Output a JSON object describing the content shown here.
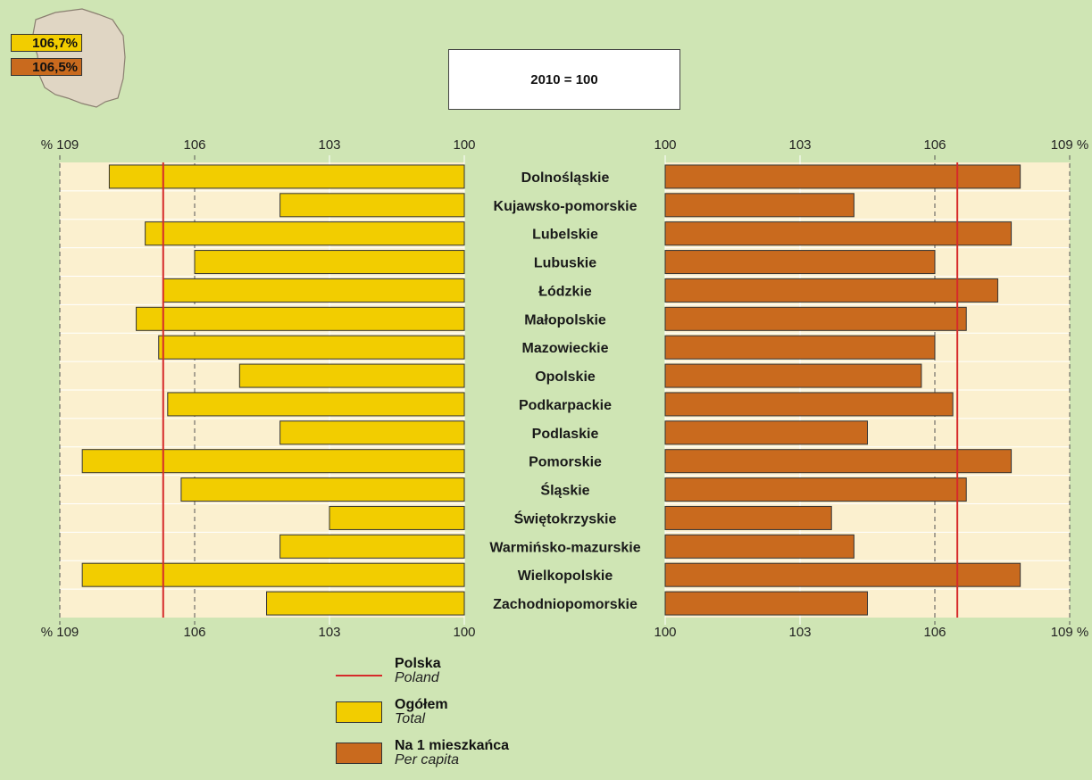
{
  "map_badges": {
    "total": "106,7%",
    "per_capita": "106,5%"
  },
  "base_label": "2010 = 100",
  "legend": {
    "polska": {
      "pl": "Polska",
      "en": "Poland"
    },
    "total": {
      "pl": "Ogółem",
      "en": "Total"
    },
    "per_capita": {
      "pl": "Na 1 mieszkańca",
      "en": "Per capita"
    }
  },
  "colors": {
    "background": "#cfe5b4",
    "plot_area": "#fbf0cf",
    "total_bar": "#f2cd00",
    "per_capita_bar": "#c96a1e",
    "reference_line": "#d62a2a",
    "map_fill": "#e0d6c4"
  },
  "chart_data": {
    "type": "bar",
    "orientation": "horizontal",
    "categories": [
      "Dolnośląskie",
      "Kujawsko-pomorskie",
      "Lubelskie",
      "Lubuskie",
      "Łódzkie",
      "Małopolskie",
      "Mazowieckie",
      "Opolskie",
      "Podkarpackie",
      "Podlaskie",
      "Pomorskie",
      "Śląskie",
      "Świętokrzyskie",
      "Warmińsko-mazurskie",
      "Wielkopolskie",
      "Zachodniopomorskie"
    ],
    "series": [
      {
        "name": "Ogółem",
        "values": [
          107.9,
          104.1,
          107.1,
          106.0,
          106.7,
          107.3,
          106.8,
          105.0,
          106.6,
          104.1,
          108.5,
          106.3,
          103.0,
          104.1,
          108.5,
          104.4
        ]
      },
      {
        "name": "Na 1 mieszkańca",
        "values": [
          107.9,
          104.2,
          107.7,
          106.0,
          107.4,
          106.7,
          106.0,
          105.7,
          106.4,
          104.5,
          107.7,
          106.7,
          103.7,
          104.2,
          107.9,
          104.5
        ]
      }
    ],
    "reference_lines": {
      "Ogółem": 106.7,
      "Na 1 mieszkańca": 106.5
    },
    "xlim": [
      100,
      109
    ],
    "ticks": [
      100,
      103,
      106,
      109
    ],
    "tick_labels_left": [
      "% 109",
      "106",
      "103",
      "100"
    ],
    "tick_labels_right": [
      "100",
      "103",
      "106",
      "109 %"
    ]
  }
}
